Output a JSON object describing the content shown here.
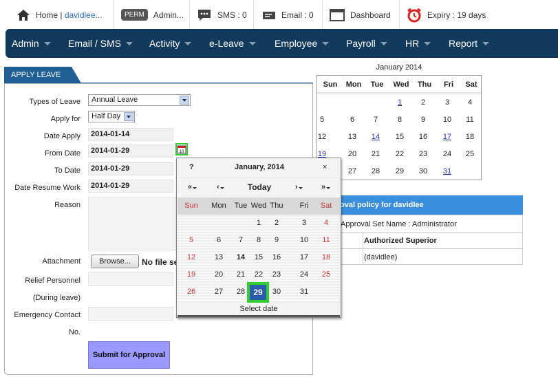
{
  "topbar": {
    "home": "Home",
    "separator": "|",
    "user": "davidlee...",
    "perm_badge": "PERM",
    "admin": "Admin...",
    "sms": "SMS : 0",
    "email": "Email : 0",
    "dashboard": "Dashboard",
    "expiry": "Expiry : 19 days"
  },
  "nav": [
    "Admin",
    "Email / SMS",
    "Activity",
    "e-Leave",
    "Employee",
    "Payroll",
    "HR",
    "Report"
  ],
  "form": {
    "tab": "APPLY LEAVE",
    "labels": {
      "types_of_leave": "Types of Leave",
      "apply_for": "Apply for",
      "date_apply": "Date Apply",
      "from_date": "From Date",
      "to_date": "To Date",
      "date_resume": "Date Resume Work",
      "reason": "Reason",
      "attachment": "Attachment",
      "relief1": "Relief Personnel",
      "relief2": "(During leave)",
      "emergency1": "Emergency Contact",
      "emergency2": "No."
    },
    "types_of_leave": "Annual Leave",
    "apply_for": "Half Day",
    "date_apply": "2014-01-14",
    "from_date": "2014-01-29",
    "to_date": "2014-01-29",
    "date_resume": "2014-01-29",
    "browse_button": "Browse...",
    "no_file": "No file se",
    "submit": "Submit for Approval",
    "calendar_icon_day": "10"
  },
  "right_calendar": {
    "title": "January 2014",
    "headers": [
      "Sun",
      "Mon",
      "Tue",
      "Wed",
      "Thu",
      "Fri",
      "Sat"
    ],
    "rows": [
      [
        "",
        "",
        "",
        "1",
        "2",
        "3",
        "4"
      ],
      [
        "5",
        "6",
        "7",
        "8",
        "9",
        "10",
        "11"
      ],
      [
        "12",
        "13",
        "14",
        "15",
        "16",
        "17",
        "18"
      ],
      [
        "19",
        "20",
        "21",
        "22",
        "23",
        "24",
        "25"
      ],
      [
        "26",
        "27",
        "28",
        "29",
        "30",
        "31",
        ""
      ]
    ],
    "links": [
      "1",
      "14",
      "17",
      "19",
      "31"
    ]
  },
  "approval": {
    "heading": "oval policy for davidlee",
    "set_name": "Approval Set Name : Administrator",
    "col_header": "Authorized Superior",
    "superior": "(davidlee)"
  },
  "popup": {
    "help": "?",
    "title": "January, 2014",
    "close": "×",
    "prev_year": "«",
    "prev_month": "‹",
    "today": "Today",
    "next_month": "›",
    "next_year": "»",
    "headers": [
      "Sun",
      "Mon",
      "Tue",
      "Wed",
      "Thu",
      "Fri",
      "Sat"
    ],
    "rows": [
      [
        "",
        "",
        "",
        "1",
        "2",
        "3",
        "4"
      ],
      [
        "5",
        "6",
        "7",
        "8",
        "9",
        "10",
        "11"
      ],
      [
        "12",
        "13",
        "14",
        "15",
        "16",
        "17",
        "18"
      ],
      [
        "19",
        "20",
        "21",
        "22",
        "23",
        "24",
        "25"
      ],
      [
        "26",
        "27",
        "28",
        "29",
        "30",
        "31",
        ""
      ]
    ],
    "selected": "29",
    "today_day": "14",
    "footer": "Select date",
    "weekend_color": "#cc3333",
    "selected_color": "#2a5db0",
    "highlight_color": "#33cc33"
  }
}
